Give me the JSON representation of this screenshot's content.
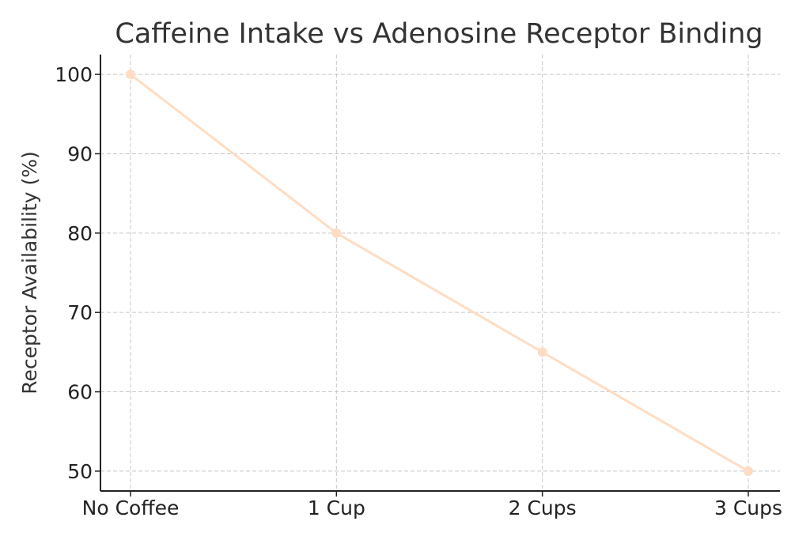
{
  "chart_data": {
    "type": "line",
    "title": "Caffeine Intake vs Adenosine Receptor Binding",
    "xlabel": "",
    "ylabel": "Receptor Availability (%)",
    "categories": [
      "No Coffee",
      "1 Cup",
      "2 Cups",
      "3 Cups"
    ],
    "series": [
      {
        "values": [
          100,
          80,
          65,
          50
        ],
        "color": "#ffdcc2"
      }
    ],
    "yticks": [
      50,
      60,
      70,
      80,
      90,
      100
    ],
    "ylim": [
      47.5,
      102.5
    ],
    "grid": true,
    "legend": "none",
    "colors": {
      "axis": "#222222",
      "grid": "#c8c8c8",
      "text": "#333333"
    }
  }
}
